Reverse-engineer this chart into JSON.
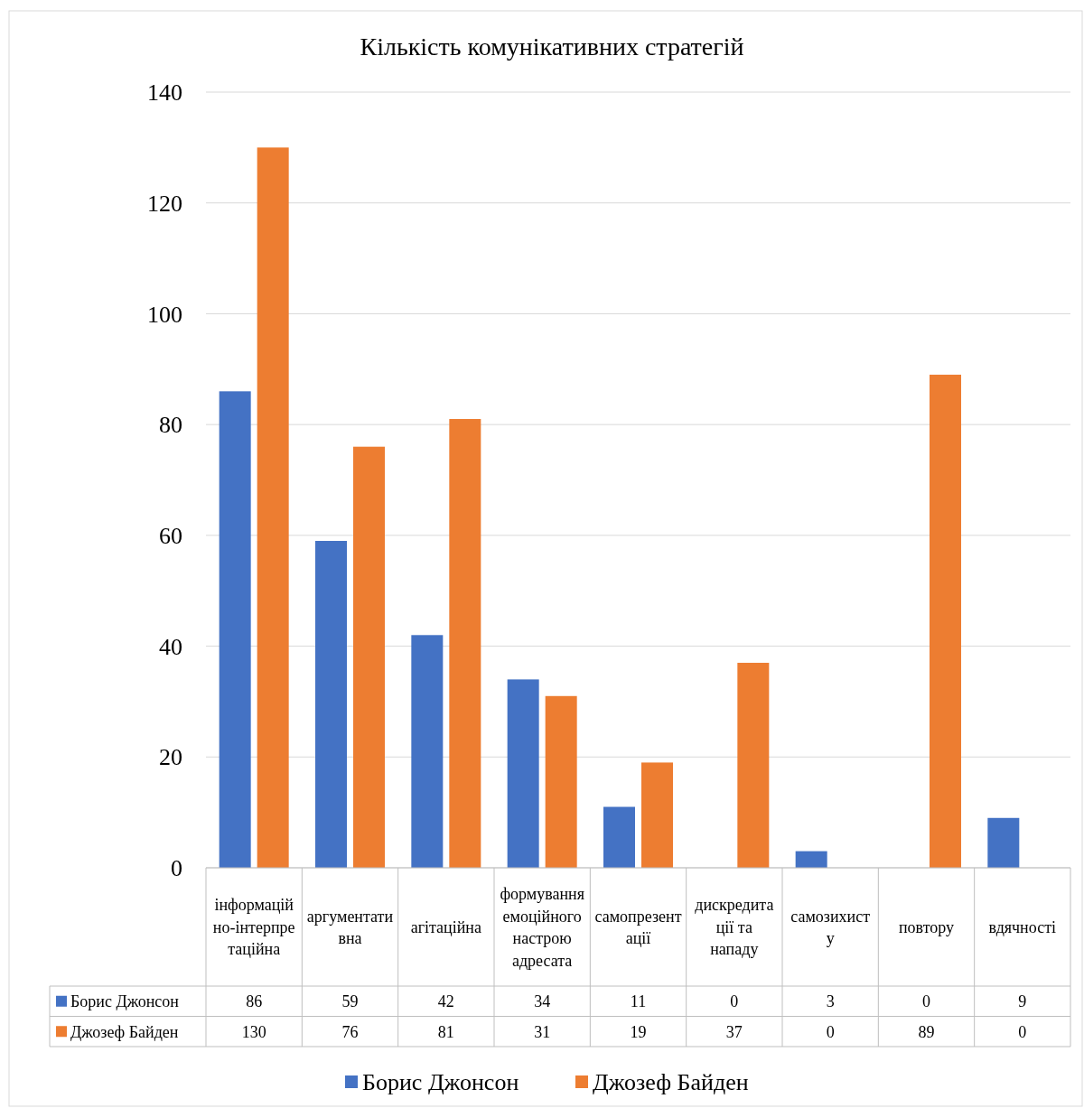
{
  "chart_data": {
    "type": "bar",
    "title": "Кількість комунікативних стратегій",
    "categories": [
      "інформаційно-інтерпретаційна",
      "аргументативна",
      "агітаційна",
      "формування емоційного настрою адресата",
      "самопрезентації",
      "дискредитації та нападу",
      "самозихисту",
      "повтору",
      "вдячності"
    ],
    "series": [
      {
        "name": "Борис Джонсон",
        "color": "#4472c4",
        "values": [
          86,
          59,
          42,
          34,
          11,
          0,
          3,
          0,
          9
        ]
      },
      {
        "name": "Джозеф Байден",
        "color": "#ed7d31",
        "values": [
          130,
          76,
          81,
          31,
          19,
          37,
          0,
          89,
          0
        ]
      }
    ],
    "ylim": [
      0,
      140
    ],
    "yticks": [
      0,
      20,
      40,
      60,
      80,
      100,
      120,
      140
    ],
    "grid": "y",
    "legend": "bottom",
    "data_labels": true
  }
}
